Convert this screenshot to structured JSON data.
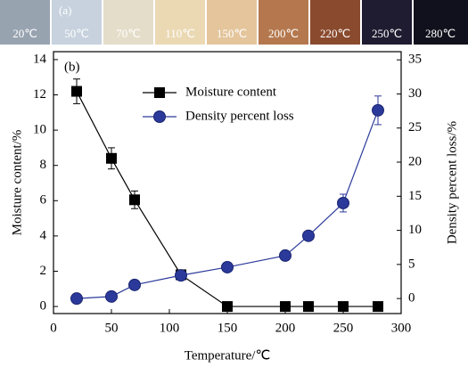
{
  "photo_strip": {
    "label": "(a)",
    "temperatures": [
      "20℃",
      "50℃",
      "70℃",
      "110℃",
      "150℃",
      "200℃",
      "220℃",
      "250℃",
      "280℃"
    ]
  },
  "chart_data": {
    "type": "line",
    "annotation": "(b)",
    "x_label": "Temperature/℃",
    "y_label": "Moisture content/%",
    "y2_label": "Density percent loss/%",
    "x": [
      20,
      50,
      70,
      110,
      150,
      200,
      220,
      250,
      280
    ],
    "series": [
      {
        "name": "Moisture content",
        "color": "#000000",
        "marker": "square",
        "values": [
          12.2,
          8.4,
          6.05,
          1.8,
          0,
          0,
          0,
          0,
          0
        ],
        "errors": [
          0.7,
          0.6,
          0.5,
          null,
          null,
          null,
          null,
          null,
          null
        ]
      },
      {
        "name": "Density percent loss",
        "color": "#2b3a9a",
        "marker": "circle",
        "axis": "y2",
        "values": [
          0,
          0.3,
          2.0,
          3.4,
          4.6,
          6.3,
          9.2,
          14.0,
          27.6
        ],
        "errors": [
          null,
          null,
          null,
          null,
          null,
          null,
          null,
          1.3,
          2.1
        ]
      }
    ],
    "xlim": [
      0,
      300
    ],
    "xticks": [
      0,
      50,
      100,
      150,
      200,
      250,
      300
    ],
    "ylim": [
      -0.4,
      14.45
    ],
    "yticks": [
      0,
      2,
      4,
      6,
      8,
      10,
      12,
      14
    ],
    "y2lim": [
      -2.2,
      36.2
    ],
    "y2ticks": [
      0,
      5,
      10,
      15,
      20,
      25,
      30,
      35
    ],
    "legend": "upper center"
  }
}
